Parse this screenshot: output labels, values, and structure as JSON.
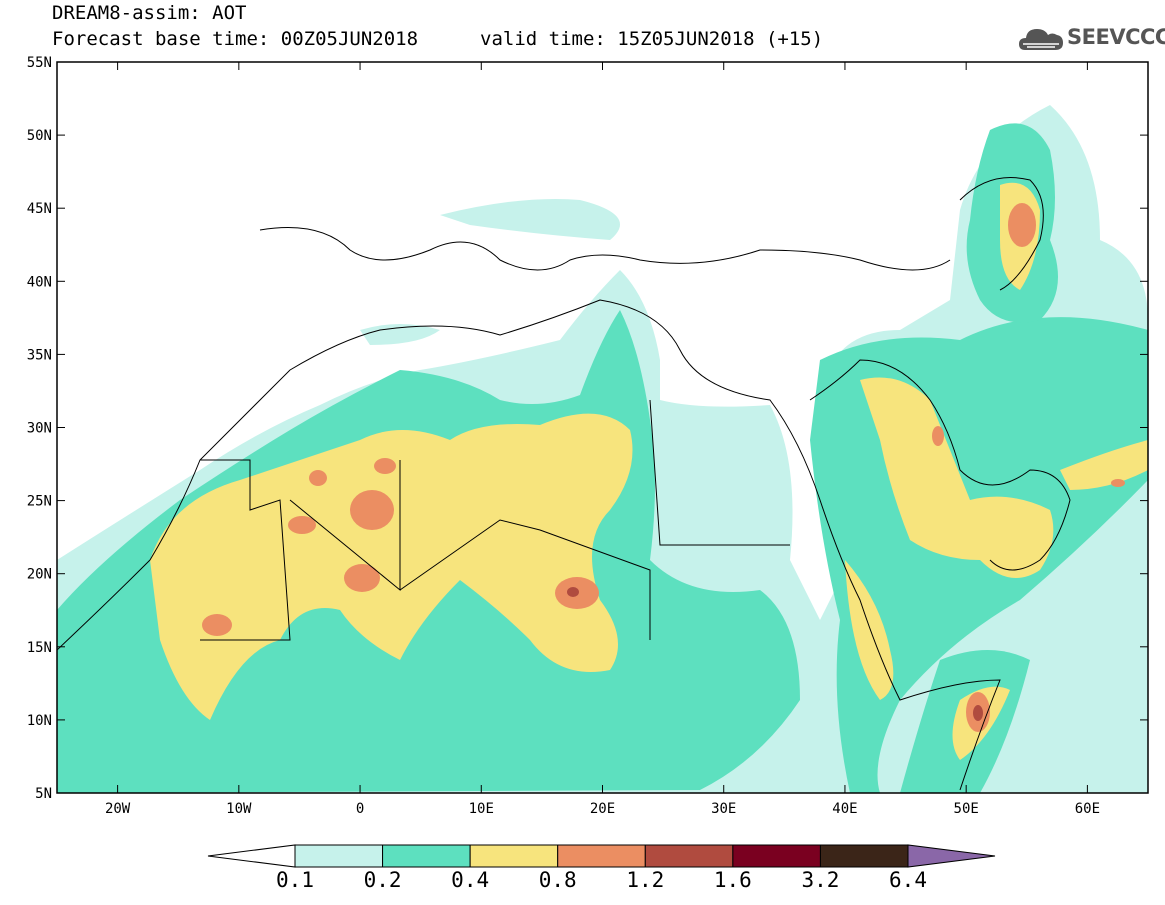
{
  "header": {
    "title": "DREAM8-assim: AOT",
    "base_time": "Forecast base time: 00Z05JUN2018",
    "valid_time": "valid time: 15Z05JUN2018 (+15)"
  },
  "logo": {
    "text": "SEEVCCC",
    "icon": "cloud-icon",
    "color": "#555555"
  },
  "map": {
    "lat_labels": [
      "55N",
      "50N",
      "45N",
      "40N",
      "35N",
      "30N",
      "25N",
      "20N",
      "15N",
      "10N",
      "5N"
    ],
    "lon_labels": [
      "20W",
      "10W",
      "0",
      "10E",
      "20E",
      "30E",
      "40E",
      "50E",
      "60E"
    ],
    "lat_range": [
      5,
      55
    ],
    "lon_range": [
      -25,
      65
    ]
  },
  "colorbar": {
    "labels": [
      "0.1",
      "0.2",
      "0.4",
      "0.8",
      "1.2",
      "1.6",
      "3.2",
      "6.4"
    ],
    "colors": [
      "#ffffff",
      "#c6f2eb",
      "#5de0bf",
      "#f7e47d",
      "#eb8e62",
      "#b04b3f",
      "#7a0020",
      "#3b2518",
      "#8a67a8"
    ]
  }
}
